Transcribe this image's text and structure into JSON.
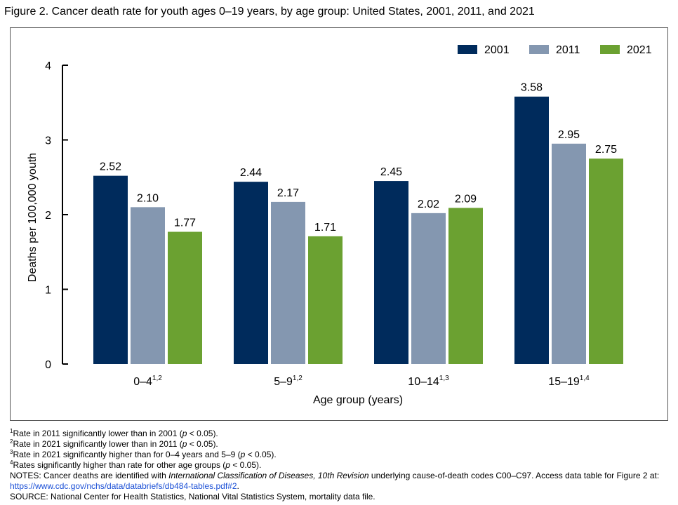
{
  "title": "Figure 2. Cancer death rate for youth ages 0–19 years, by age group: United States, 2001, 2011, and 2021",
  "chart_data": {
    "type": "bar",
    "title": "Figure 2. Cancer death rate for youth ages 0–19 years, by age group: United States, 2001, 2011, and 2021",
    "categories": [
      "0–4",
      "5–9",
      "10–14",
      "15–19"
    ],
    "category_superscripts": [
      "1,2",
      "1,2",
      "1,3",
      "1,4"
    ],
    "series": [
      {
        "name": "2001",
        "color": "#002b5c",
        "values": [
          2.52,
          2.44,
          2.45,
          3.58
        ],
        "labels": [
          "2.52",
          "2.44",
          "2.45",
          "3.58"
        ]
      },
      {
        "name": "2011",
        "color": "#8497b0",
        "values": [
          2.1,
          2.17,
          2.02,
          2.95
        ],
        "labels": [
          "2.10",
          "2.17",
          "2.02",
          "2.95"
        ]
      },
      {
        "name": "2021",
        "color": "#6ba131",
        "values": [
          1.77,
          1.71,
          2.09,
          2.75
        ],
        "labels": [
          "1.77",
          "1.71",
          "2.09",
          "2.75"
        ]
      }
    ],
    "xlabel": "Age group (years)",
    "ylabel": "Deaths per 100,000 youth",
    "ylim": [
      0,
      4
    ],
    "yticks": [
      "0",
      "1",
      "2",
      "3",
      "4"
    ],
    "grid": false,
    "legend_position": "top-right"
  },
  "footnotes": [
    {
      "sup": "1",
      "text": "Rate in 2011 significantly lower than in 2001 (",
      "p": "p",
      "tail": " < 0.05)."
    },
    {
      "sup": "2",
      "text": "Rate in 2021 significantly lower than in 2011 (",
      "p": "p",
      "tail": " < 0.05)."
    },
    {
      "sup": "3",
      "text": "Rate in 2021 significantly higher than for 0–4 years and 5–9 (",
      "p": "p",
      "tail": " < 0.05)."
    },
    {
      "sup": "4",
      "text": "Rates significantly higher than rate for other age groups (",
      "p": "p",
      "tail": " < 0.05)."
    }
  ],
  "notes": {
    "prefix": "NOTES: Cancer deaths are identified with ",
    "italic": "International Classification of Diseases, 10th Revision",
    "suffix": " underlying cause-of-death codes C00–C97. Access data table for Figure 2 at: ",
    "link": "https://www.cdc.gov/nchs/data/databriefs/db484-tables.pdf#2",
    "end": "."
  },
  "source": "SOURCE: National Center for Health Statistics, National Vital Statistics System, mortality data file."
}
